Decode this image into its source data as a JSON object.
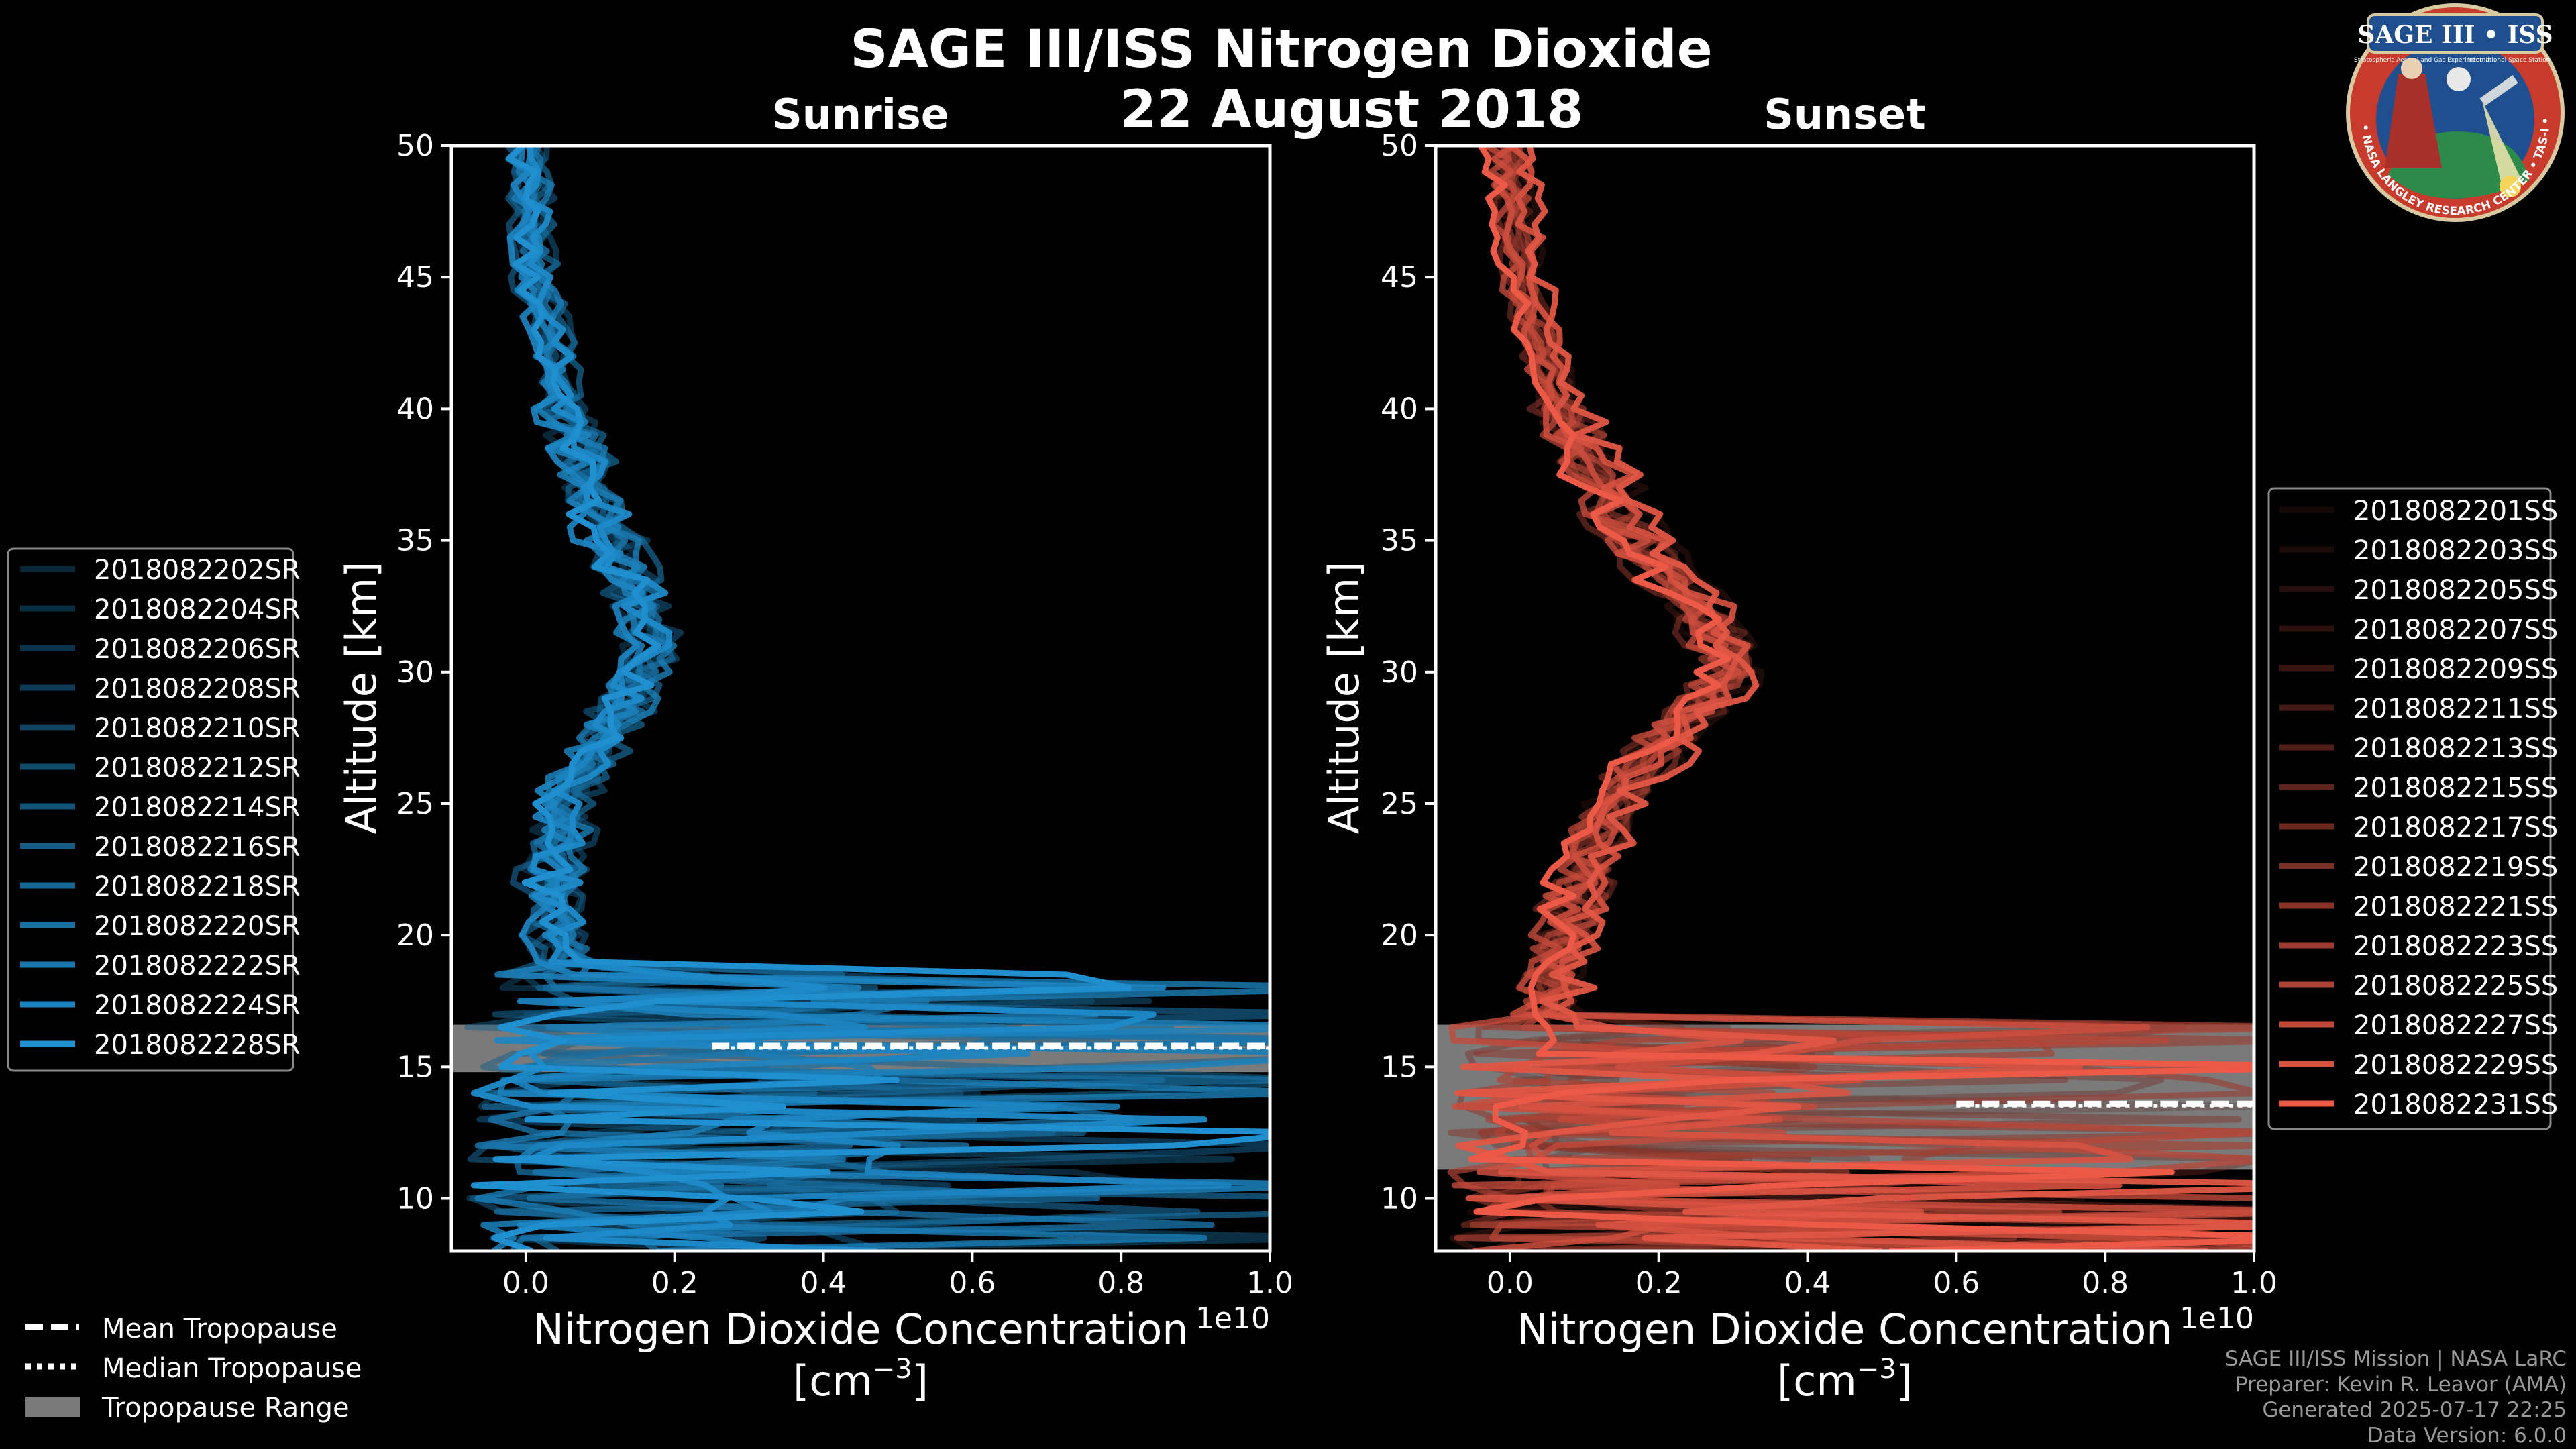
{
  "figure": {
    "title": "SAGE III/ISS Nitrogen Dioxide",
    "date": "22 August 2018",
    "footer": [
      "SAGE III/ISS Mission | NASA LaRC",
      "Preparer: Kevin R. Leavor (AMA)",
      "Generated 2025-07-17 22:25",
      "Data Version: 6.0.0"
    ],
    "logo": {
      "text": "SAGE III • ISS",
      "subtext": "Stratospheric Aerosol and Gas Experiment III",
      "subtext2": "International Space Station",
      "ring_text": "BALL • NASA LANGLEY RESEARCH CENTER • TAS-I • ESA"
    },
    "tropopause_legend": {
      "mean": "Mean Tropopause",
      "median": "Median Tropopause",
      "range": "Tropopause Range"
    },
    "colors": {
      "sunrise": "#1f8fd0",
      "sunset": "#ec5a47",
      "range": "#7a7a7a",
      "axis": "#ffffff"
    }
  },
  "chart_data": [
    {
      "type": "line",
      "title": "Sunrise",
      "xlabel": "Nitrogen Dioxide Concentration",
      "xunit": "[cm",
      "xunit_exp": "−3",
      "xunit_close": "]",
      "xoffset": "1e10",
      "ylabel": "Altitude [km]",
      "xlim": [
        -0.1,
        1.0
      ],
      "ylim": [
        8,
        50
      ],
      "xticks": [
        0.0,
        0.2,
        0.4,
        0.6,
        0.8,
        1.0
      ],
      "xtick_labels": [
        "0.0",
        "0.2",
        "0.4",
        "0.6",
        "0.8",
        "1.0"
      ],
      "yticks": [
        10,
        15,
        20,
        25,
        30,
        35,
        40,
        45,
        50
      ],
      "tropopause": {
        "mean": 15.8,
        "median": 15.8,
        "range": [
          14.8,
          16.6
        ]
      },
      "profile_shape": [
        [
          50,
          0.01
        ],
        [
          45,
          0.02
        ],
        [
          40,
          0.06
        ],
        [
          35,
          0.12
        ],
        [
          32,
          0.17
        ],
        [
          30,
          0.16
        ],
        [
          27,
          0.1
        ],
        [
          25,
          0.06
        ],
        [
          22,
          0.04
        ],
        [
          20,
          0.05
        ],
        [
          19,
          0.06
        ]
      ],
      "series": [
        {
          "name": "2018082202SR"
        },
        {
          "name": "2018082204SR"
        },
        {
          "name": "2018082206SR"
        },
        {
          "name": "2018082208SR"
        },
        {
          "name": "2018082210SR"
        },
        {
          "name": "2018082212SR"
        },
        {
          "name": "2018082214SR"
        },
        {
          "name": "2018082216SR"
        },
        {
          "name": "2018082218SR"
        },
        {
          "name": "2018082220SR"
        },
        {
          "name": "2018082222SR"
        },
        {
          "name": "2018082224SR"
        },
        {
          "name": "2018082228SR"
        }
      ]
    },
    {
      "type": "line",
      "title": "Sunset",
      "xlabel": "Nitrogen Dioxide Concentration",
      "xunit": "[cm",
      "xunit_exp": "−3",
      "xunit_close": "]",
      "xoffset": "1e10",
      "ylabel": "Altitude [km]",
      "xlim": [
        -0.1,
        1.0
      ],
      "ylim": [
        8,
        50
      ],
      "xticks": [
        0.0,
        0.2,
        0.4,
        0.6,
        0.8,
        1.0
      ],
      "xtick_labels": [
        "0.0",
        "0.2",
        "0.4",
        "0.6",
        "0.8",
        "1.0"
      ],
      "yticks": [
        10,
        15,
        20,
        25,
        30,
        35,
        40,
        45,
        50
      ],
      "tropopause": {
        "mean": 13.6,
        "median": 13.6,
        "range": [
          11.1,
          16.6
        ]
      },
      "profile_shape": [
        [
          50,
          0.0
        ],
        [
          45,
          0.02
        ],
        [
          40,
          0.07
        ],
        [
          35,
          0.17
        ],
        [
          32,
          0.27
        ],
        [
          30,
          0.3
        ],
        [
          27,
          0.2
        ],
        [
          25,
          0.14
        ],
        [
          22,
          0.1
        ],
        [
          20,
          0.08
        ],
        [
          17,
          0.05
        ]
      ],
      "series": [
        {
          "name": "2018082201SS"
        },
        {
          "name": "2018082203SS"
        },
        {
          "name": "2018082205SS"
        },
        {
          "name": "2018082207SS"
        },
        {
          "name": "2018082209SS"
        },
        {
          "name": "2018082211SS"
        },
        {
          "name": "2018082213SS"
        },
        {
          "name": "2018082215SS"
        },
        {
          "name": "2018082217SS"
        },
        {
          "name": "2018082219SS"
        },
        {
          "name": "2018082221SS"
        },
        {
          "name": "2018082223SS"
        },
        {
          "name": "2018082225SS"
        },
        {
          "name": "2018082227SS"
        },
        {
          "name": "2018082229SS"
        },
        {
          "name": "2018082231SS"
        }
      ]
    }
  ]
}
